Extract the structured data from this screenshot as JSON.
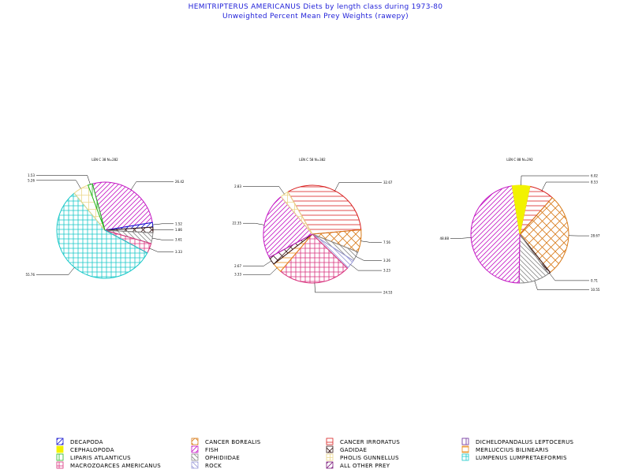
{
  "title": "HEMITRIPTERUS AMERICANUS Diets by length class during 1973-80",
  "subtitle": "Unweighted Percent Mean Prey Weights (rawepy)",
  "colors": {
    "decapoda": "#1a1ad0",
    "cephalopoda": "#f2f200",
    "liparis": "#22b822",
    "macrozoarces": "#d8307c",
    "cancer_borealis": "#d87a18",
    "fish": "#c418c4",
    "ophidiidae": "#8a8a8a",
    "rock": "#9a9ad8",
    "cancer_irroratus": "#d82020",
    "gadidae": "#3a1a1a",
    "pholis": "#ecd88a",
    "all_other": "#7a1a7a",
    "dichelopandalus": "#6a2a9a",
    "merluccius": "#e88a18",
    "lumpenus": "#18c8c8"
  },
  "legend": [
    {
      "key": "decapoda",
      "label": "DECAPODA",
      "icon": "diagonal-hatch"
    },
    {
      "key": "cancer_borealis",
      "label": "CANCER BOREALIS",
      "icon": "empty"
    },
    {
      "key": "cancer_irroratus",
      "label": "CANCER IRRORATUS",
      "icon": "horizontal-hatch"
    },
    {
      "key": "dichelopandalus",
      "label": "DICHELOPANDALUS LEPTOCERUS",
      "icon": "vertical-hatch"
    },
    {
      "key": "cephalopoda",
      "label": "CEPHALOPODA",
      "icon": "solid"
    },
    {
      "key": "fish",
      "label": "FISH",
      "icon": "diagonal-hatch"
    },
    {
      "key": "gadidae",
      "label": "GADIDAE",
      "icon": "crosshatch"
    },
    {
      "key": "merluccius",
      "label": "MERLUCCIUS BILINEARIS",
      "icon": "horizontal-hatch"
    },
    {
      "key": "liparis",
      "label": "LIPARIS ATLANTICUS",
      "icon": "vertical-hatch"
    },
    {
      "key": "ophidiidae",
      "label": "OPHIDIIDAE",
      "icon": "diagonal-hatch"
    },
    {
      "key": "pholis",
      "label": "PHOLIS GUNNELLUS",
      "icon": "empty"
    },
    {
      "key": "lumpenus",
      "label": "LUMPENUS LUMPRETAEFORMIS",
      "icon": "crosshatch"
    },
    {
      "key": "macrozoarces",
      "label": "MACROZOARCES AMERICANUS",
      "icon": "crosshatch"
    },
    {
      "key": "rock",
      "label": "ROCK",
      "icon": "diagonal-hatch"
    },
    {
      "key": "all_other",
      "label": "ALL OTHER PREY",
      "icon": "diagonal-hatch"
    }
  ],
  "chart_data": [
    {
      "type": "pie",
      "subtitle": "LEN C 38 N=282",
      "slices": [
        {
          "category": "fish",
          "value": 26.42,
          "label": "26.42"
        },
        {
          "category": "decapoda",
          "value": 1.52,
          "label": "1.52"
        },
        {
          "category": "gadidae",
          "value": 1.86,
          "label": "1.86"
        },
        {
          "category": "ophidiidae",
          "value": 3.61,
          "label": "3.61"
        },
        {
          "category": "macrozoarces",
          "value": 3.33,
          "label": "3.33"
        },
        {
          "category": "lumpenus",
          "value": 55.76,
          "label": "55.76"
        },
        {
          "category": "pholis",
          "value": 5.26,
          "label": "5.26"
        },
        {
          "category": "liparis",
          "value": 1.53,
          "label": "1.53"
        }
      ]
    },
    {
      "type": "pie",
      "subtitle": "LEN C 58 N=382",
      "slices": [
        {
          "category": "cancer_irroratus",
          "value": 32.67,
          "label": "32.67"
        },
        {
          "category": "cancer_borealis",
          "value": 7.56,
          "label": "7.56"
        },
        {
          "category": "ophidiidae",
          "value": 3.26,
          "label": "3.26"
        },
        {
          "category": "rock",
          "value": 3.23,
          "label": "3.23"
        },
        {
          "category": "macrozoarces",
          "value": 24.53,
          "label": "24.53"
        },
        {
          "category": "merluccius",
          "value": 3.33,
          "label": "3.33"
        },
        {
          "category": "gadidae",
          "value": 2.67,
          "label": "2.67"
        },
        {
          "category": "fish",
          "value": 22.35,
          "label": "22.35"
        },
        {
          "category": "pholis",
          "value": 2.83,
          "label": "2.83"
        }
      ]
    },
    {
      "type": "pie",
      "subtitle": "LEN C 88 N=292",
      "slices": [
        {
          "category": "cancer_irroratus",
          "value": 8.53,
          "label": "8.53"
        },
        {
          "category": "cancer_borealis",
          "value": 28.67,
          "label": "28.67"
        },
        {
          "category": "gadidae",
          "value": 0.71,
          "label": "0.71"
        },
        {
          "category": "ophidiidae",
          "value": 10.55,
          "label": "10.55"
        },
        {
          "category": "fish",
          "value": 48.88,
          "label": "48.88"
        },
        {
          "category": "cephalopoda",
          "value": 6.02,
          "label": "6.02"
        }
      ]
    }
  ]
}
